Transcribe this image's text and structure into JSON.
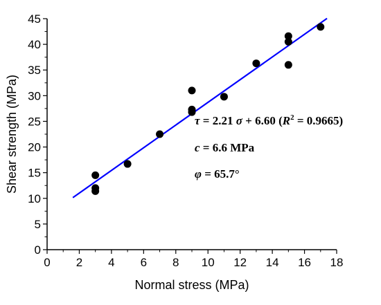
{
  "chart_data": {
    "type": "scatter",
    "xlabel": "Normal stress (MPa)",
    "ylabel": "Shear strength (MPa)",
    "xlim": [
      0,
      18
    ],
    "ylim": [
      0,
      45
    ],
    "xticks": [
      "0",
      "2",
      "4",
      "6",
      "8",
      "10",
      "12",
      "14",
      "16",
      "18"
    ],
    "yticks": [
      "0",
      "5",
      "10",
      "15",
      "20",
      "25",
      "30",
      "35",
      "40",
      "45"
    ],
    "grid": false,
    "colors": {
      "points": "#000000",
      "fit_line": "#0000ff"
    },
    "points": [
      {
        "x": 3,
        "y": 14.5
      },
      {
        "x": 3,
        "y": 12.0
      },
      {
        "x": 3,
        "y": 11.4
      },
      {
        "x": 5,
        "y": 16.7
      },
      {
        "x": 7,
        "y": 22.5
      },
      {
        "x": 9,
        "y": 31.0
      },
      {
        "x": 9,
        "y": 27.3
      },
      {
        "x": 9,
        "y": 26.8
      },
      {
        "x": 11,
        "y": 29.8
      },
      {
        "x": 13,
        "y": 36.3
      },
      {
        "x": 15,
        "y": 41.6
      },
      {
        "x": 15,
        "y": 40.5
      },
      {
        "x": 15,
        "y": 36.0
      },
      {
        "x": 17,
        "y": 43.4
      }
    ],
    "fit": {
      "slope": 2.21,
      "intercept": 6.6,
      "x_range": [
        1.6,
        17.4
      ]
    },
    "annotations": {
      "equation": {
        "tau": "τ",
        "eq_mid": " = 2.21 ",
        "sigma": "σ",
        "eq_end": " + 6.60 (",
        "R": "R",
        "sup": "2",
        "r2_val": " = 0.9665)"
      },
      "cohesion": {
        "symbol": "c",
        "value": " = 6.6 MPa"
      },
      "friction": {
        "symbol": "φ",
        "value": " = 65.7°"
      }
    }
  }
}
